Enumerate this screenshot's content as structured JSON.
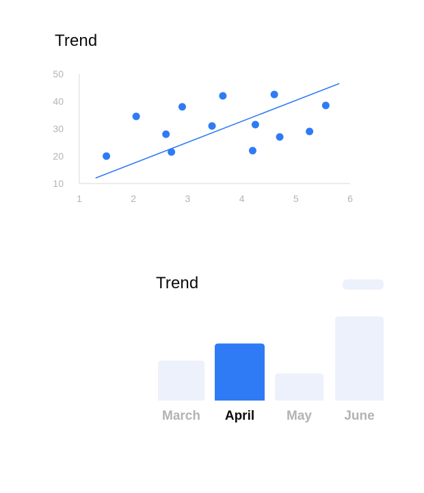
{
  "colors": {
    "accent": "#2f7bf5",
    "muted_bar": "#edf1fc",
    "axis": "#e0e0e0",
    "tick_text": "#b3b3b3",
    "title_text": "#0b0b0b",
    "active_label": "#0b0b0b",
    "inactive_label": "#b3b3b3"
  },
  "chart_data": [
    {
      "type": "scatter",
      "title": "Trend",
      "xlim": [
        1,
        6
      ],
      "ylim": [
        10,
        50
      ],
      "x_ticks": [
        "1",
        "2",
        "3",
        "4",
        "5",
        "6"
      ],
      "y_ticks": [
        "10",
        "20",
        "30",
        "40",
        "50"
      ],
      "grid": false,
      "points": [
        {
          "x": 1.5,
          "y": 20
        },
        {
          "x": 2.05,
          "y": 34.5
        },
        {
          "x": 2.6,
          "y": 28
        },
        {
          "x": 2.7,
          "y": 21.5
        },
        {
          "x": 2.9,
          "y": 38
        },
        {
          "x": 3.45,
          "y": 31
        },
        {
          "x": 3.65,
          "y": 42
        },
        {
          "x": 4.2,
          "y": 22
        },
        {
          "x": 4.25,
          "y": 31.5
        },
        {
          "x": 4.6,
          "y": 42.5
        },
        {
          "x": 4.7,
          "y": 27
        },
        {
          "x": 5.25,
          "y": 29
        },
        {
          "x": 5.55,
          "y": 38.5
        }
      ],
      "trendline": {
        "x": [
          1.3,
          5.8
        ],
        "y": [
          12,
          46.5
        ]
      }
    },
    {
      "type": "bar",
      "title": "Trend",
      "categories": [
        "March",
        "April",
        "May",
        "June"
      ],
      "values": [
        14,
        20,
        9.5,
        29.5
      ],
      "highlighted": "April",
      "ylim": [
        0,
        30
      ],
      "legend": "top-right"
    }
  ]
}
